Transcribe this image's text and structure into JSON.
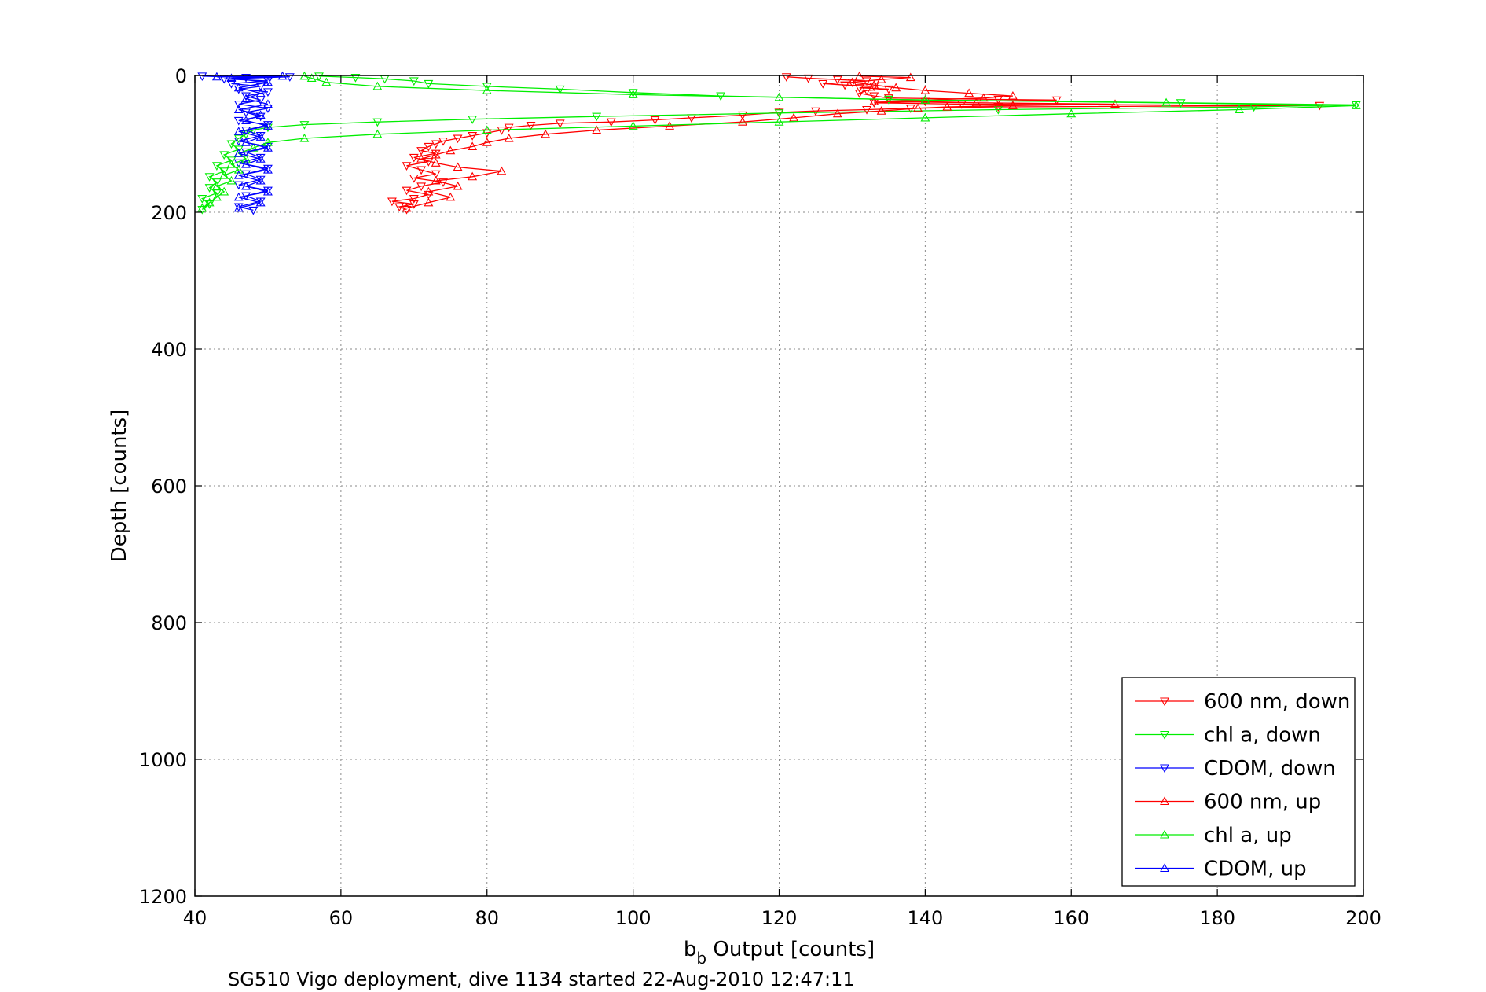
{
  "chart_data": {
    "type": "line",
    "title": "",
    "xlabel_main": "b",
    "xlabel_sub": "b",
    "xlabel_rest": " Output [counts]",
    "ylabel": "Depth [counts]",
    "caption": "SG510 Vigo deployment, dive 1134 started 22-Aug-2010 12:47:11",
    "xlim": [
      40,
      200
    ],
    "ylim": [
      0,
      1200
    ],
    "y_reversed": true,
    "grid": true,
    "legend_position": "bottom-right",
    "x_ticks": [
      "40",
      "60",
      "80",
      "100",
      "120",
      "140",
      "160",
      "180",
      "200"
    ],
    "y_ticks": [
      "0",
      "200",
      "400",
      "600",
      "800",
      "1000",
      "1200"
    ],
    "series": [
      {
        "name": "600 nm, down",
        "color": "#ff0000",
        "marker": "triangle-down",
        "points": [
          [
            121,
            2
          ],
          [
            124,
            4
          ],
          [
            128,
            6
          ],
          [
            132,
            8
          ],
          [
            130,
            10
          ],
          [
            126,
            12
          ],
          [
            129,
            14
          ],
          [
            133,
            16
          ],
          [
            131,
            18
          ],
          [
            135,
            20
          ],
          [
            132,
            22
          ],
          [
            131,
            26
          ],
          [
            133,
            30
          ],
          [
            135,
            33
          ],
          [
            150,
            35
          ],
          [
            158,
            36
          ],
          [
            140,
            38
          ],
          [
            133,
            40
          ],
          [
            145,
            42
          ],
          [
            194,
            44
          ],
          [
            150,
            46
          ],
          [
            138,
            48
          ],
          [
            132,
            50
          ],
          [
            125,
            52
          ],
          [
            120,
            54
          ],
          [
            115,
            58
          ],
          [
            108,
            62
          ],
          [
            103,
            65
          ],
          [
            97,
            68
          ],
          [
            90,
            70
          ],
          [
            86,
            73
          ],
          [
            83,
            76
          ],
          [
            82,
            80
          ],
          [
            80,
            84
          ],
          [
            78,
            88
          ],
          [
            76,
            92
          ],
          [
            74,
            96
          ],
          [
            73,
            100
          ],
          [
            72,
            104
          ],
          [
            71,
            110
          ],
          [
            73,
            114
          ],
          [
            70,
            120
          ],
          [
            72,
            126
          ],
          [
            69,
            132
          ],
          [
            71,
            138
          ],
          [
            73,
            144
          ],
          [
            70,
            150
          ],
          [
            74,
            156
          ],
          [
            71,
            162
          ],
          [
            69,
            168
          ],
          [
            72,
            174
          ],
          [
            70,
            180
          ],
          [
            67,
            184
          ],
          [
            70,
            188
          ],
          [
            68,
            192
          ],
          [
            69,
            196
          ]
        ]
      },
      {
        "name": "chl a, down",
        "color": "#00ee00",
        "marker": "triangle-down",
        "points": [
          [
            57,
            1
          ],
          [
            62,
            3
          ],
          [
            66,
            5
          ],
          [
            70,
            8
          ],
          [
            72,
            12
          ],
          [
            80,
            16
          ],
          [
            90,
            20
          ],
          [
            100,
            25
          ],
          [
            112,
            30
          ],
          [
            135,
            35
          ],
          [
            175,
            40
          ],
          [
            199,
            43
          ],
          [
            185,
            46
          ],
          [
            150,
            50
          ],
          [
            120,
            55
          ],
          [
            95,
            60
          ],
          [
            78,
            64
          ],
          [
            65,
            68
          ],
          [
            55,
            72
          ],
          [
            50,
            76
          ],
          [
            48,
            80
          ],
          [
            47,
            86
          ],
          [
            46,
            92
          ],
          [
            45,
            100
          ],
          [
            46,
            108
          ],
          [
            44,
            116
          ],
          [
            45,
            124
          ],
          [
            43,
            132
          ],
          [
            44,
            140
          ],
          [
            42,
            148
          ],
          [
            43,
            156
          ],
          [
            42,
            164
          ],
          [
            43,
            172
          ],
          [
            41,
            180
          ],
          [
            42,
            188
          ],
          [
            41,
            196
          ]
        ]
      },
      {
        "name": "CDOM, down",
        "color": "#0000ff",
        "marker": "triangle-down",
        "points": [
          [
            41,
            1
          ],
          [
            47,
            3
          ],
          [
            53,
            2
          ],
          [
            44,
            5
          ],
          [
            50,
            8
          ],
          [
            45,
            12
          ],
          [
            49,
            16
          ],
          [
            46,
            20
          ],
          [
            50,
            24
          ],
          [
            47,
            30
          ],
          [
            49,
            36
          ],
          [
            46,
            42
          ],
          [
            50,
            48
          ],
          [
            47,
            54
          ],
          [
            49,
            60
          ],
          [
            46,
            66
          ],
          [
            50,
            72
          ],
          [
            47,
            80
          ],
          [
            49,
            88
          ],
          [
            46,
            96
          ],
          [
            50,
            104
          ],
          [
            47,
            112
          ],
          [
            49,
            120
          ],
          [
            46,
            128
          ],
          [
            50,
            136
          ],
          [
            47,
            144
          ],
          [
            49,
            152
          ],
          [
            46,
            160
          ],
          [
            50,
            168
          ],
          [
            47,
            176
          ],
          [
            49,
            184
          ],
          [
            46,
            192
          ],
          [
            48,
            197
          ]
        ]
      },
      {
        "name": "600 nm, up",
        "color": "#ff0000",
        "marker": "triangle-up",
        "points": [
          [
            69,
            194
          ],
          [
            72,
            186
          ],
          [
            75,
            178
          ],
          [
            72,
            170
          ],
          [
            76,
            162
          ],
          [
            73,
            154
          ],
          [
            78,
            148
          ],
          [
            82,
            140
          ],
          [
            76,
            134
          ],
          [
            73,
            128
          ],
          [
            71,
            122
          ],
          [
            73,
            116
          ],
          [
            75,
            110
          ],
          [
            78,
            104
          ],
          [
            80,
            98
          ],
          [
            83,
            92
          ],
          [
            88,
            86
          ],
          [
            95,
            80
          ],
          [
            105,
            74
          ],
          [
            115,
            68
          ],
          [
            122,
            62
          ],
          [
            128,
            56
          ],
          [
            134,
            52
          ],
          [
            139,
            48
          ],
          [
            143,
            46
          ],
          [
            152,
            44
          ],
          [
            166,
            42
          ],
          [
            147,
            40
          ],
          [
            133,
            38
          ],
          [
            140,
            36
          ],
          [
            148,
            33
          ],
          [
            152,
            30
          ],
          [
            146,
            26
          ],
          [
            140,
            22
          ],
          [
            136,
            18
          ],
          [
            133,
            14
          ],
          [
            130,
            10
          ],
          [
            134,
            6
          ],
          [
            138,
            3
          ],
          [
            131,
            1
          ]
        ]
      },
      {
        "name": "chl a, up",
        "color": "#00ee00",
        "marker": "triangle-up",
        "points": [
          [
            41,
            194
          ],
          [
            42,
            186
          ],
          [
            43,
            178
          ],
          [
            44,
            170
          ],
          [
            43,
            162
          ],
          [
            45,
            154
          ],
          [
            44,
            146
          ],
          [
            46,
            138
          ],
          [
            45,
            130
          ],
          [
            47,
            122
          ],
          [
            46,
            114
          ],
          [
            48,
            106
          ],
          [
            50,
            98
          ],
          [
            55,
            92
          ],
          [
            65,
            86
          ],
          [
            80,
            80
          ],
          [
            100,
            74
          ],
          [
            120,
            68
          ],
          [
            140,
            62
          ],
          [
            160,
            56
          ],
          [
            183,
            50
          ],
          [
            199,
            44
          ],
          [
            173,
            40
          ],
          [
            140,
            36
          ],
          [
            120,
            32
          ],
          [
            100,
            28
          ],
          [
            80,
            22
          ],
          [
            65,
            16
          ],
          [
            58,
            10
          ],
          [
            56,
            4
          ],
          [
            55,
            1
          ]
        ]
      },
      {
        "name": "CDOM, up",
        "color": "#0000ff",
        "marker": "triangle-up",
        "points": [
          [
            46,
            194
          ],
          [
            49,
            186
          ],
          [
            46,
            178
          ],
          [
            50,
            170
          ],
          [
            47,
            162
          ],
          [
            49,
            154
          ],
          [
            46,
            146
          ],
          [
            50,
            138
          ],
          [
            47,
            130
          ],
          [
            49,
            122
          ],
          [
            46,
            114
          ],
          [
            50,
            106
          ],
          [
            47,
            98
          ],
          [
            49,
            90
          ],
          [
            46,
            82
          ],
          [
            50,
            74
          ],
          [
            47,
            66
          ],
          [
            49,
            58
          ],
          [
            46,
            50
          ],
          [
            50,
            42
          ],
          [
            47,
            34
          ],
          [
            49,
            26
          ],
          [
            46,
            18
          ],
          [
            50,
            10
          ],
          [
            45,
            4
          ],
          [
            52,
            1
          ],
          [
            43,
            2
          ]
        ]
      }
    ]
  }
}
